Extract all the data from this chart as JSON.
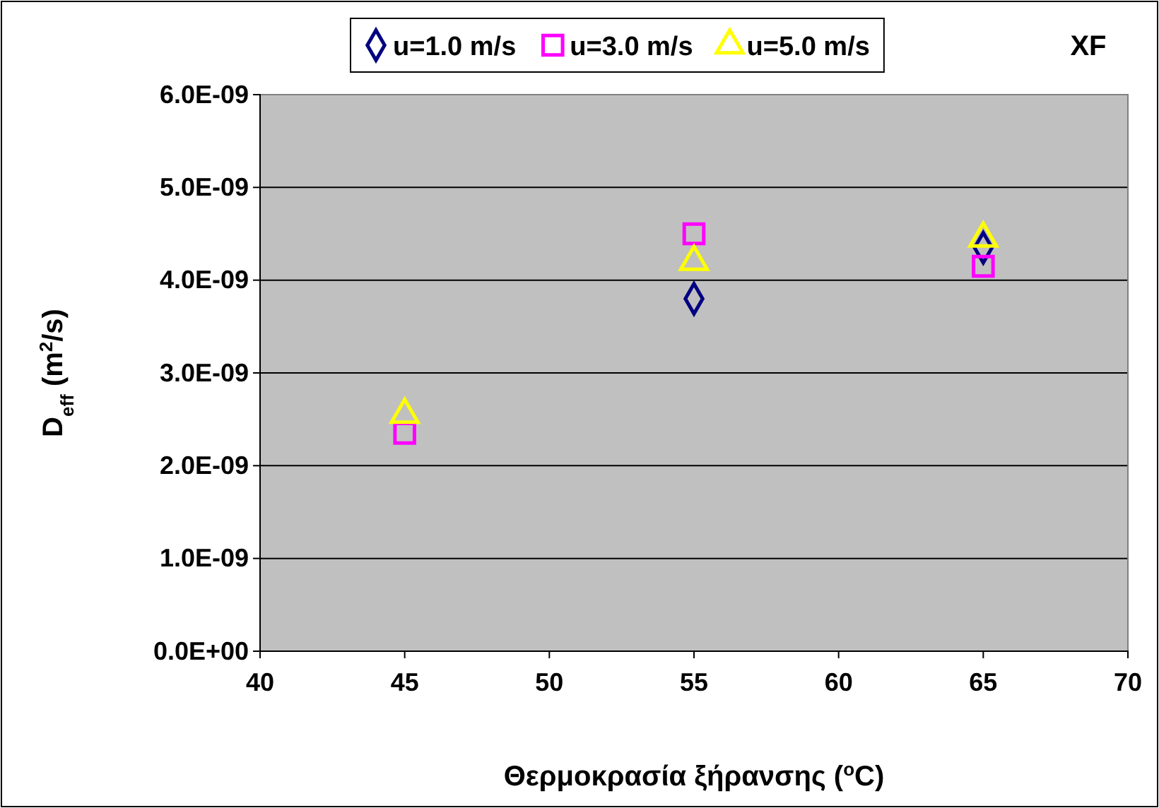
{
  "chart_data": {
    "type": "scatter",
    "xlabel": "Θερμοκρασία ξήρανσης ($^{o}$C)",
    "ylabel": "D$_{eff}$ (m$^{2}$/s)",
    "annotations": [
      "XF"
    ],
    "x": [
      45,
      55,
      65
    ],
    "series": [
      {
        "name": "u=1.0 m/s",
        "color": "#000080",
        "marker": "diamond",
        "values": [
          null,
          3.8e-09,
          4.35e-09
        ]
      },
      {
        "name": "u=3.0 m/s",
        "color": "#ff00ff",
        "marker": "square",
        "values": [
          2.35e-09,
          4.5e-09,
          4.15e-09
        ]
      },
      {
        "name": "u=5.0 m/s",
        "color": "#ffff00",
        "marker": "triangle",
        "values": [
          2.55e-09,
          4.2e-09,
          4.45e-09
        ]
      }
    ],
    "xlim": [
      40,
      70
    ],
    "xticks": [
      40,
      45,
      50,
      55,
      60,
      65,
      70
    ],
    "ylim": [
      0,
      6e-09
    ],
    "yticks": [
      {
        "value": 0,
        "label": "0.0E+00"
      },
      {
        "value": 1e-09,
        "label": "1.0E-09"
      },
      {
        "value": 2e-09,
        "label": "2.0E-09"
      },
      {
        "value": 3e-09,
        "label": "3.0E-09"
      },
      {
        "value": 4e-09,
        "label": "4.0E-09"
      },
      {
        "value": 5e-09,
        "label": "5.0E-09"
      },
      {
        "value": 6e-09,
        "label": "6.0E-09"
      }
    ],
    "grid": "y",
    "legend": "top"
  }
}
